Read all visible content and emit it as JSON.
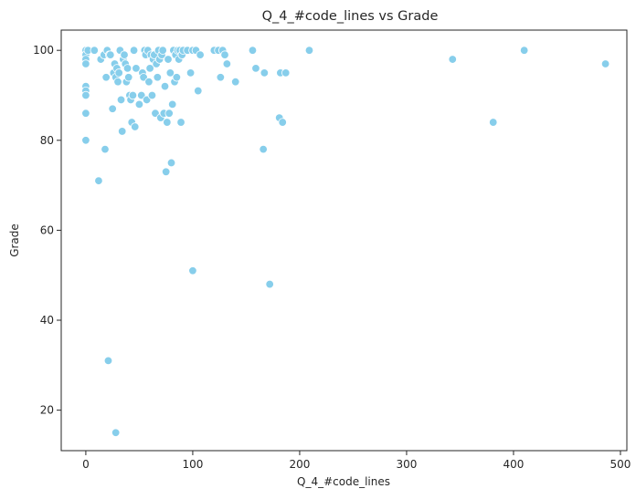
{
  "chart_data": {
    "type": "scatter",
    "title": "Q_4_#code_lines vs Grade",
    "xlabel": "Q_4_#code_lines",
    "ylabel": "Grade",
    "xlim": [
      -23,
      506
    ],
    "ylim": [
      11,
      104.5
    ],
    "xticks": [
      0,
      100,
      200,
      300,
      400,
      500
    ],
    "yticks": [
      20,
      40,
      60,
      80,
      100
    ],
    "xtick_labels": [
      "0",
      "100",
      "200",
      "300",
      "400",
      "500"
    ],
    "ytick_labels": [
      "20",
      "40",
      "60",
      "80",
      "100"
    ],
    "grid": false,
    "marker_color": "#87ceeb",
    "marker_edge": "#ffffff",
    "points": [
      [
        0,
        100
      ],
      [
        0,
        99
      ],
      [
        0,
        98
      ],
      [
        0,
        97
      ],
      [
        0,
        92
      ],
      [
        0,
        91
      ],
      [
        0,
        90
      ],
      [
        0,
        86
      ],
      [
        0,
        80
      ],
      [
        2,
        100
      ],
      [
        8,
        100
      ],
      [
        12,
        71
      ],
      [
        14,
        98
      ],
      [
        17,
        99
      ],
      [
        18,
        78
      ],
      [
        19,
        94
      ],
      [
        20,
        100
      ],
      [
        21,
        31
      ],
      [
        22,
        99
      ],
      [
        23,
        99
      ],
      [
        25,
        87
      ],
      [
        26,
        95
      ],
      [
        27,
        97
      ],
      [
        28,
        15
      ],
      [
        28,
        94
      ],
      [
        29,
        96
      ],
      [
        30,
        93
      ],
      [
        31,
        95
      ],
      [
        32,
        100
      ],
      [
        33,
        89
      ],
      [
        34,
        82
      ],
      [
        35,
        98
      ],
      [
        36,
        99
      ],
      [
        37,
        97
      ],
      [
        38,
        93
      ],
      [
        39,
        96
      ],
      [
        40,
        94
      ],
      [
        41,
        90
      ],
      [
        42,
        89
      ],
      [
        43,
        84
      ],
      [
        44,
        90
      ],
      [
        45,
        100
      ],
      [
        46,
        83
      ],
      [
        47,
        96
      ],
      [
        50,
        88
      ],
      [
        52,
        90
      ],
      [
        53,
        95
      ],
      [
        54,
        94
      ],
      [
        55,
        100
      ],
      [
        56,
        99
      ],
      [
        57,
        89
      ],
      [
        58,
        100
      ],
      [
        59,
        93
      ],
      [
        60,
        96
      ],
      [
        61,
        99
      ],
      [
        62,
        90
      ],
      [
        63,
        98
      ],
      [
        64,
        99
      ],
      [
        65,
        86
      ],
      [
        66,
        97
      ],
      [
        67,
        94
      ],
      [
        68,
        100
      ],
      [
        69,
        98
      ],
      [
        70,
        85
      ],
      [
        71,
        99
      ],
      [
        72,
        100
      ],
      [
        73,
        86
      ],
      [
        74,
        92
      ],
      [
        75,
        73
      ],
      [
        76,
        84
      ],
      [
        77,
        98
      ],
      [
        78,
        86
      ],
      [
        79,
        95
      ],
      [
        80,
        75
      ],
      [
        81,
        88
      ],
      [
        82,
        100
      ],
      [
        83,
        93
      ],
      [
        84,
        99
      ],
      [
        85,
        94
      ],
      [
        86,
        100
      ],
      [
        87,
        98
      ],
      [
        88,
        100
      ],
      [
        89,
        84
      ],
      [
        90,
        99
      ],
      [
        91,
        100
      ],
      [
        95,
        100
      ],
      [
        98,
        95
      ],
      [
        100,
        100
      ],
      [
        100,
        51
      ],
      [
        103,
        100
      ],
      [
        105,
        91
      ],
      [
        107,
        99
      ],
      [
        120,
        100
      ],
      [
        124,
        100
      ],
      [
        126,
        94
      ],
      [
        128,
        100
      ],
      [
        130,
        99
      ],
      [
        132,
        97
      ],
      [
        140,
        93
      ],
      [
        156,
        100
      ],
      [
        159,
        96
      ],
      [
        166,
        78
      ],
      [
        167,
        95
      ],
      [
        172,
        48
      ],
      [
        181,
        85
      ],
      [
        182,
        95
      ],
      [
        184,
        84
      ],
      [
        187,
        95
      ],
      [
        209,
        100
      ],
      [
        343,
        98
      ],
      [
        381,
        84
      ],
      [
        410,
        100
      ],
      [
        486,
        97
      ]
    ]
  }
}
